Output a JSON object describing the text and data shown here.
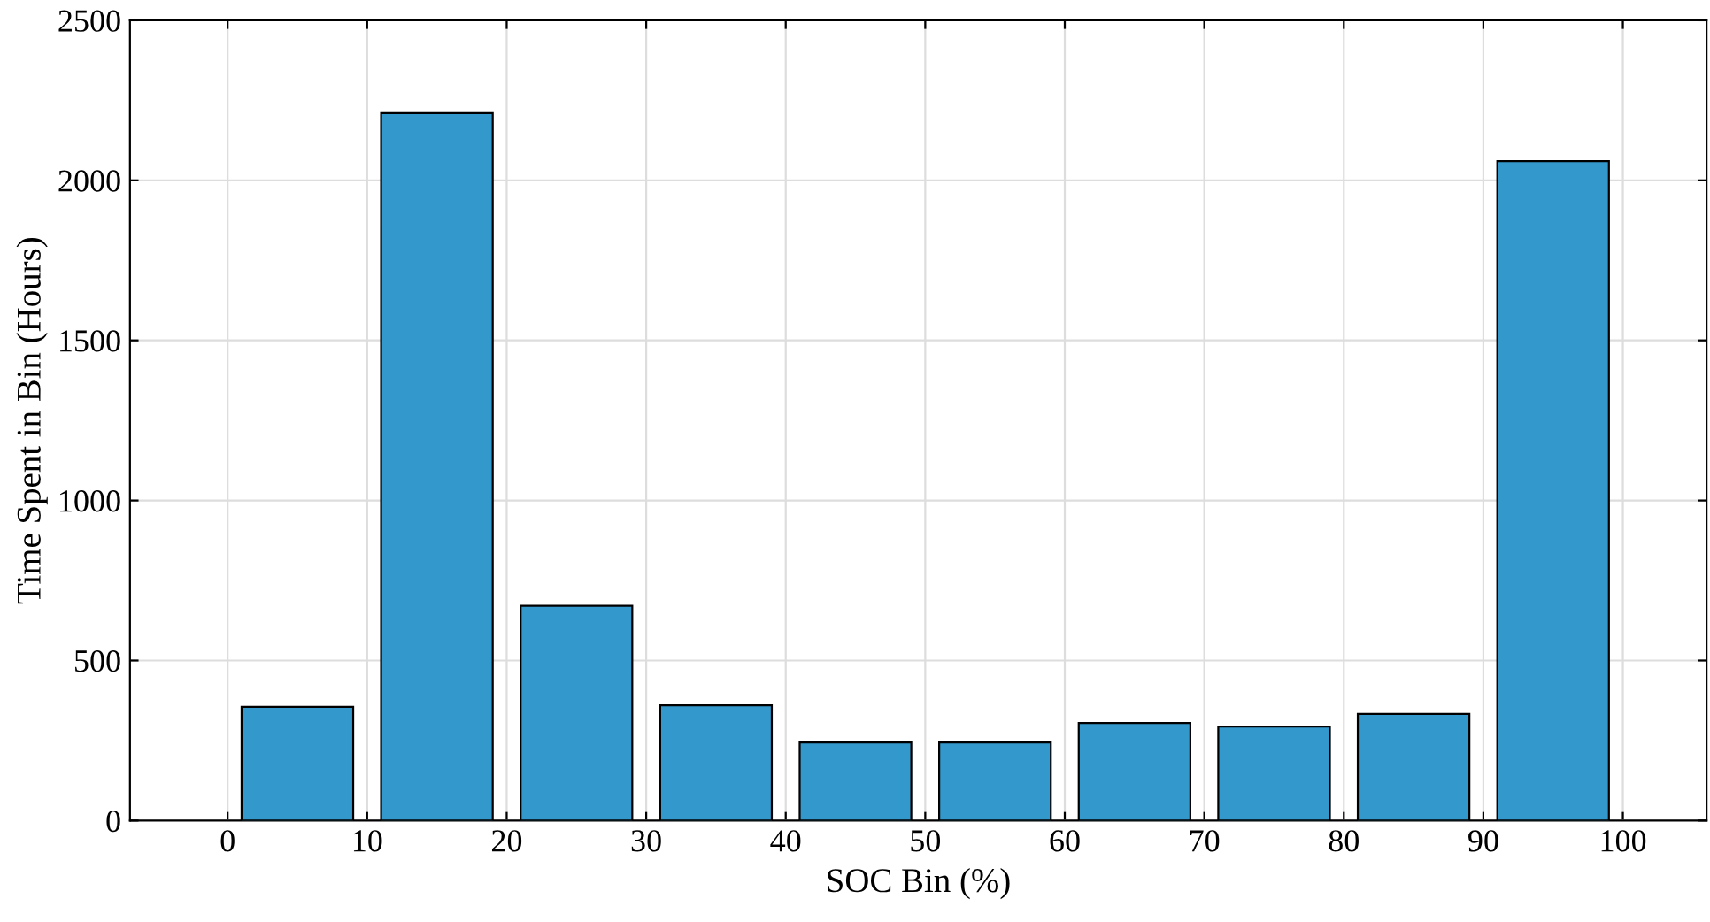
{
  "chart_data": {
    "type": "bar",
    "xlabel": "SOC Bin (%)",
    "ylabel": "Time Spent in Bin (Hours)",
    "x": [
      5,
      15,
      25,
      35,
      45,
      55,
      65,
      75,
      85,
      95
    ],
    "values": [
      355,
      2210,
      671,
      360,
      244,
      244,
      305,
      294,
      333,
      2060
    ],
    "color": "#3399cc",
    "xlim": [
      -7,
      106
    ],
    "xticks": [
      0,
      10,
      20,
      30,
      40,
      50,
      60,
      70,
      80,
      90,
      100
    ],
    "ylim": [
      0,
      2500
    ],
    "yticks": [
      0,
      500,
      1000,
      1500,
      2000,
      2500
    ],
    "grid": true
  }
}
